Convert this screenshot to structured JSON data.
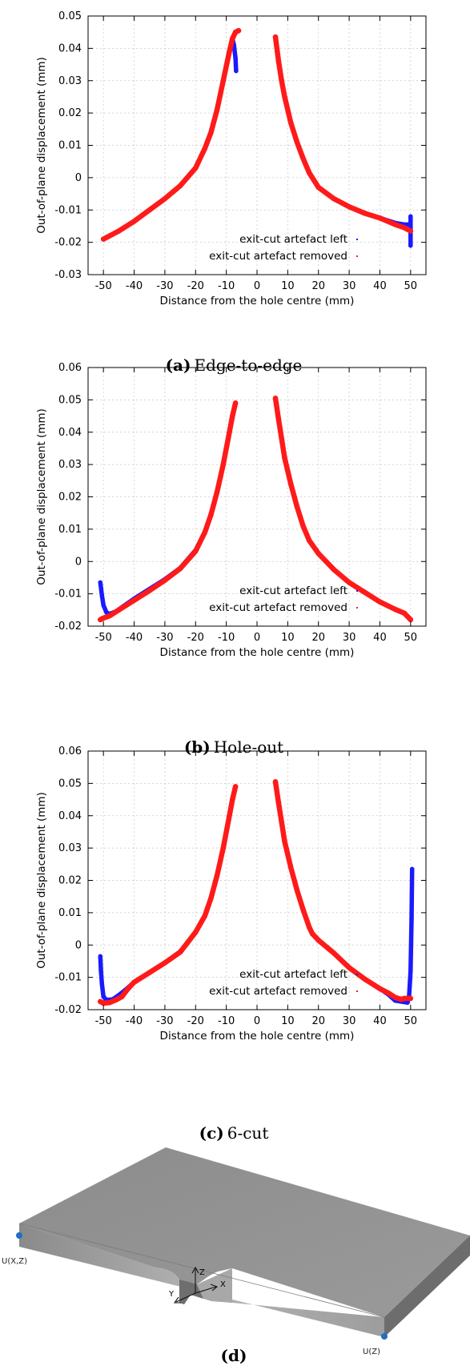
{
  "chart_data": [
    {
      "type": "scatter",
      "caption_letter": "(a)",
      "caption_text": "Edge-to-edge",
      "xlabel": "Distance from the hole centre (mm)",
      "ylabel": "Out-of-plane displacement (mm)",
      "xlim": [
        -55,
        55
      ],
      "ylim": [
        -0.03,
        0.05
      ],
      "xticks": [
        -50,
        -40,
        -30,
        -20,
        -10,
        0,
        10,
        20,
        30,
        40,
        50
      ],
      "yticks": [
        -0.03,
        -0.02,
        -0.01,
        0,
        0.01,
        0.02,
        0.03,
        0.04,
        0.05
      ],
      "grid": true,
      "legend_position": "bottom-right",
      "series": [
        {
          "name": "exit-cut artefact left",
          "color": "#1a1aff",
          "segments": [
            {
              "x": [
                -50,
                -45,
                -40,
                -35,
                -30,
                -25,
                -20,
                -17,
                -15,
                -13,
                -11,
                -9,
                -8,
                -7.5,
                -7,
                -6.8
              ],
              "y": [
                -0.019,
                -0.0165,
                -0.0135,
                -0.01,
                -0.0065,
                -0.0025,
                0.003,
                0.009,
                0.014,
                0.021,
                0.03,
                0.039,
                0.043,
                0.041,
                0.037,
                0.033
              ]
            },
            {
              "x": [
                6,
                7,
                8,
                9,
                11,
                13,
                15,
                17,
                20,
                25,
                30,
                35,
                40,
                45,
                48,
                50
              ],
              "y": [
                0.0435,
                0.036,
                0.03,
                0.025,
                0.017,
                0.011,
                0.006,
                0.0015,
                -0.003,
                -0.0065,
                -0.009,
                -0.011,
                -0.0125,
                -0.014,
                -0.0145,
                -0.0145
              ]
            },
            {
              "x": [
                50,
                50,
                50
              ],
              "y": [
                -0.021,
                -0.017,
                -0.012
              ]
            }
          ]
        },
        {
          "name": "exit-cut artefact removed",
          "color": "#ff1a1a",
          "segments": [
            {
              "x": [
                -50,
                -45,
                -40,
                -35,
                -30,
                -25,
                -20,
                -17,
                -15,
                -13,
                -11,
                -9,
                -8,
                -7,
                -6
              ],
              "y": [
                -0.019,
                -0.0165,
                -0.0135,
                -0.01,
                -0.0065,
                -0.0025,
                0.003,
                0.009,
                0.014,
                0.021,
                0.03,
                0.039,
                0.043,
                0.045,
                0.0455
              ]
            },
            {
              "x": [
                6,
                7,
                8,
                9,
                11,
                13,
                15,
                17,
                20,
                25,
                30,
                35,
                40,
                45,
                48,
                50
              ],
              "y": [
                0.0435,
                0.036,
                0.03,
                0.025,
                0.017,
                0.011,
                0.006,
                0.0015,
                -0.003,
                -0.0065,
                -0.009,
                -0.011,
                -0.0125,
                -0.0145,
                -0.0155,
                -0.0165
              ]
            }
          ]
        }
      ]
    },
    {
      "type": "scatter",
      "caption_letter": "(b)",
      "caption_text": "Hole-out",
      "xlabel": "Distance from the hole centre (mm)",
      "ylabel": "Out-of-plane displacement (mm)",
      "xlim": [
        -55,
        55
      ],
      "ylim": [
        -0.02,
        0.06
      ],
      "xticks": [
        -50,
        -40,
        -30,
        -20,
        -10,
        0,
        10,
        20,
        30,
        40,
        50
      ],
      "yticks": [
        -0.02,
        -0.01,
        0,
        0.01,
        0.02,
        0.03,
        0.04,
        0.05,
        0.06
      ],
      "grid": true,
      "legend_position": "bottom-right",
      "series": [
        {
          "name": "exit-cut artefact left",
          "color": "#1a1aff",
          "segments": [
            {
              "x": [
                -51,
                -50.5,
                -50,
                -49,
                -48,
                -46,
                -43,
                -40,
                -35,
                -30,
                -25,
                -20,
                -17,
                -15,
                -13,
                -11,
                -9,
                -8,
                -7
              ],
              "y": [
                -0.0065,
                -0.0105,
                -0.0135,
                -0.0158,
                -0.0162,
                -0.0155,
                -0.0135,
                -0.0115,
                -0.0085,
                -0.0055,
                -0.002,
                0.0035,
                0.009,
                0.0145,
                0.0215,
                0.03,
                0.04,
                0.045,
                0.049
              ]
            },
            {
              "x": [
                6,
                7,
                8,
                9,
                11,
                13,
                15,
                17,
                20,
                25,
                30,
                35,
                40,
                45,
                48,
                50
              ],
              "y": [
                0.0505,
                0.044,
                0.038,
                0.032,
                0.024,
                0.017,
                0.011,
                0.0065,
                0.0025,
                -0.0025,
                -0.0065,
                -0.0095,
                -0.0125,
                -0.0148,
                -0.016,
                -0.018
              ]
            }
          ]
        },
        {
          "name": "exit-cut artefact removed",
          "color": "#ff1a1a",
          "segments": [
            {
              "x": [
                -51,
                -50,
                -48,
                -45,
                -40,
                -35,
                -30,
                -25,
                -20,
                -17,
                -15,
                -13,
                -11,
                -9,
                -8,
                -7
              ],
              "y": [
                -0.018,
                -0.0175,
                -0.0168,
                -0.015,
                -0.012,
                -0.009,
                -0.0058,
                -0.0022,
                0.0032,
                0.009,
                0.0145,
                0.0215,
                0.03,
                0.04,
                0.045,
                0.049
              ]
            },
            {
              "x": [
                6,
                7,
                8,
                9,
                11,
                13,
                15,
                17,
                20,
                25,
                30,
                35,
                40,
                45,
                48,
                50
              ],
              "y": [
                0.0505,
                0.044,
                0.038,
                0.032,
                0.024,
                0.017,
                0.011,
                0.0065,
                0.0025,
                -0.0025,
                -0.0065,
                -0.0095,
                -0.0125,
                -0.0148,
                -0.016,
                -0.018
              ]
            }
          ]
        }
      ]
    },
    {
      "type": "scatter",
      "caption_letter": "(c)",
      "caption_text": "6-cut",
      "xlabel": "Distance from the hole centre (mm)",
      "ylabel": "Out-of-plane displacement (mm)",
      "xlim": [
        -55,
        55
      ],
      "ylim": [
        -0.02,
        0.06
      ],
      "xticks": [
        -50,
        -40,
        -30,
        -20,
        -10,
        0,
        10,
        20,
        30,
        40,
        50
      ],
      "yticks": [
        -0.02,
        -0.01,
        0,
        0.01,
        0.02,
        0.03,
        0.04,
        0.05,
        0.06
      ],
      "grid": true,
      "legend_position": "bottom-right",
      "series": [
        {
          "name": "exit-cut artefact left",
          "color": "#1a1aff",
          "segments": [
            {
              "x": [
                -51,
                -50.8,
                -50.5,
                -50,
                -49,
                -47,
                -45,
                -43,
                -40,
                -35,
                -30,
                -25,
                -20,
                -17,
                -15,
                -13,
                -11,
                -9,
                -8,
                -7
              ],
              "y": [
                -0.0035,
                -0.008,
                -0.012,
                -0.016,
                -0.017,
                -0.0168,
                -0.0155,
                -0.014,
                -0.0115,
                -0.0085,
                -0.0055,
                -0.002,
                0.004,
                0.009,
                0.0145,
                0.0215,
                0.03,
                0.04,
                0.045,
                0.049
              ]
            },
            {
              "x": [
                6,
                7,
                8,
                9,
                11,
                13,
                15,
                17,
                18,
                20,
                25,
                30,
                35,
                40,
                43,
                45,
                47,
                49,
                49.5,
                50,
                50.3,
                50.5
              ],
              "y": [
                0.0505,
                0.044,
                0.038,
                0.032,
                0.024,
                0.017,
                0.011,
                0.0055,
                0.0035,
                0.0015,
                -0.0025,
                -0.007,
                -0.0105,
                -0.0135,
                -0.0155,
                -0.0172,
                -0.0175,
                -0.0178,
                -0.016,
                -0.008,
                0.008,
                0.0235
              ]
            }
          ]
        },
        {
          "name": "exit-cut artefact removed",
          "color": "#ff1a1a",
          "segments": [
            {
              "x": [
                -51,
                -50,
                -48,
                -46,
                -45,
                -44,
                -42,
                -40,
                -35,
                -30,
                -25,
                -20,
                -17,
                -15,
                -13,
                -11,
                -9,
                -8,
                -7
              ],
              "y": [
                -0.0175,
                -0.018,
                -0.0178,
                -0.017,
                -0.0165,
                -0.016,
                -0.0135,
                -0.0115,
                -0.0085,
                -0.0055,
                -0.0022,
                0.004,
                0.009,
                0.0145,
                0.0215,
                0.03,
                0.04,
                0.045,
                0.049
              ]
            },
            {
              "x": [
                6,
                7,
                8,
                9,
                11,
                13,
                15,
                17,
                18,
                20,
                25,
                30,
                35,
                40,
                43,
                45,
                47,
                48,
                50
              ],
              "y": [
                0.0505,
                0.044,
                0.038,
                0.032,
                0.024,
                0.017,
                0.011,
                0.0055,
                0.0035,
                0.0015,
                -0.0025,
                -0.007,
                -0.0105,
                -0.0135,
                -0.015,
                -0.0162,
                -0.0168,
                -0.0165,
                -0.0165
              ]
            }
          ]
        }
      ]
    }
  ],
  "figure_d": {
    "caption_letter": "(d)",
    "label_left": "U(X,Z)",
    "label_right": "U(Z)",
    "axis_z": "Z",
    "axis_y": "Y",
    "axis_x": "X",
    "marker_color": "#1f6fc4"
  }
}
